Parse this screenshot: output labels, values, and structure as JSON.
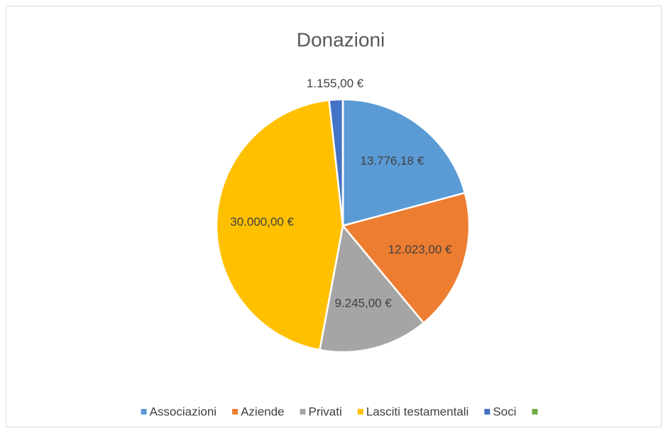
{
  "chart_data": {
    "type": "pie",
    "title": "Donazioni",
    "categories": [
      "Associazioni",
      "Aziende",
      "Privati",
      "Lasciti testamentali",
      "Soci",
      null
    ],
    "values": [
      13776.18,
      12023,
      9245,
      30000,
      1155,
      0
    ],
    "value_labels": [
      "13.776,18 €",
      "12.023,00 €",
      "9.245,00 €",
      "30.000,00 €",
      "1.155,00 €",
      null
    ],
    "colors": [
      "#5b9bd5",
      "#ed7d31",
      "#a5a5a5",
      "#ffc000",
      "#4472c4",
      "#70ad47"
    ],
    "legend": "bottom"
  }
}
